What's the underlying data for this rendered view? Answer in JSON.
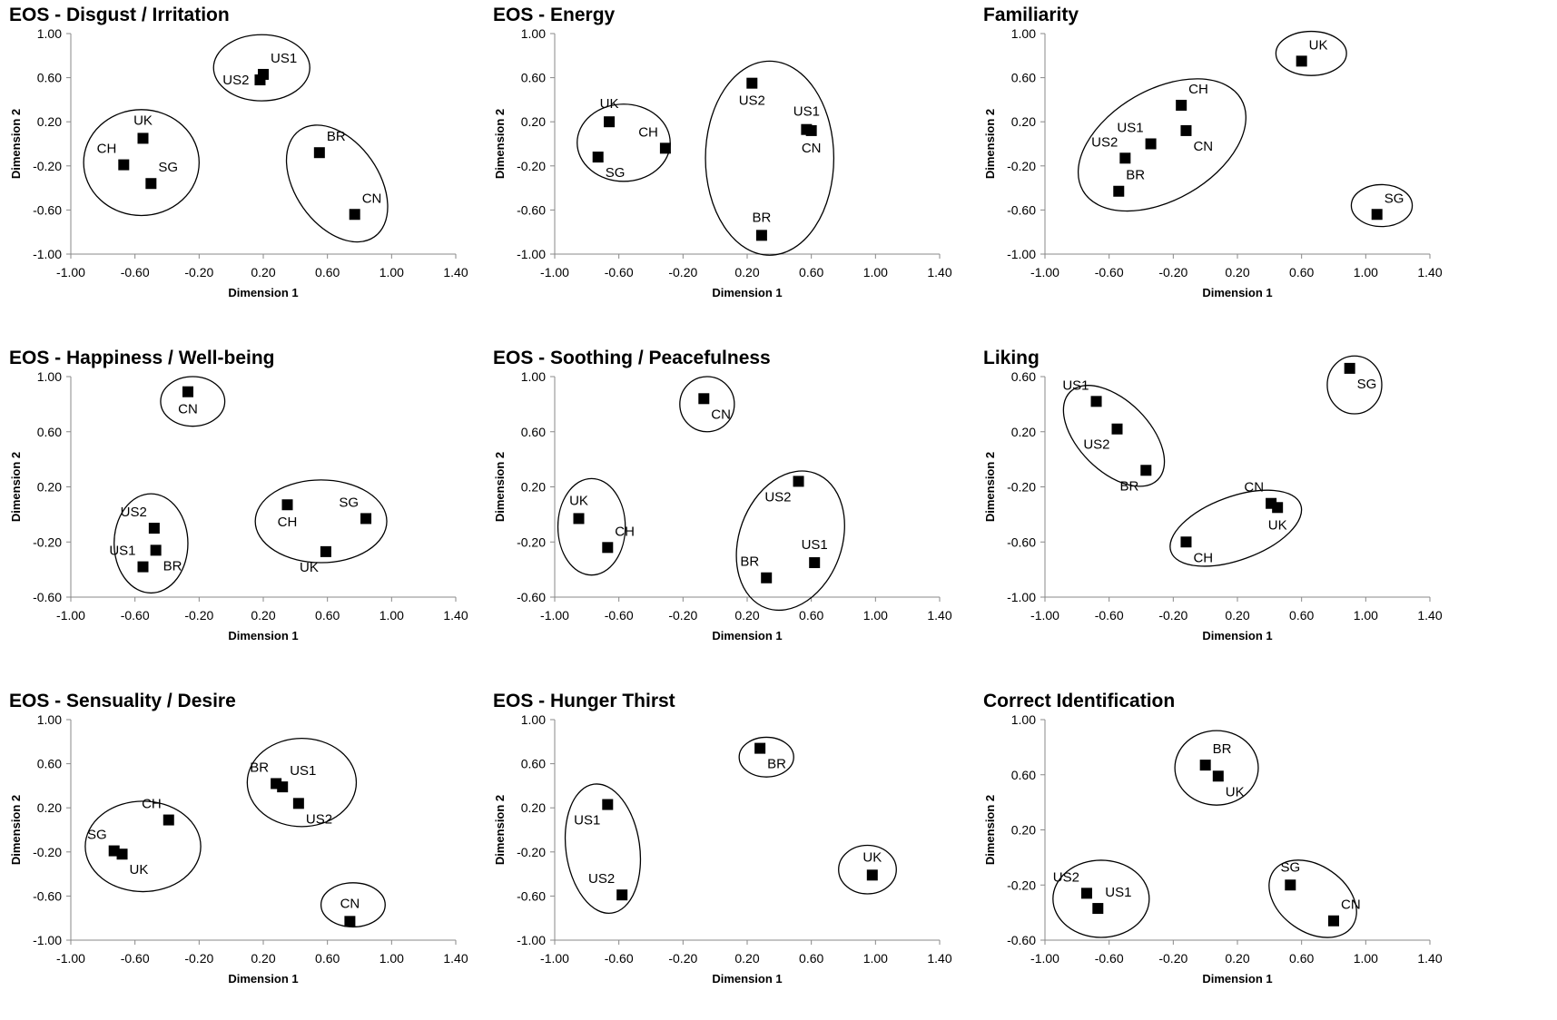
{
  "chart_data": [
    {
      "type": "scatter",
      "title": "EOS - Disgust / Irritation",
      "xlabel": "Dimension 1",
      "ylabel": "Dimension 2",
      "xlim": [
        -1.0,
        1.4
      ],
      "ylim": [
        -1.0,
        1.0
      ],
      "xticks": [
        "-1.00",
        "-0.60",
        "-0.20",
        "0.20",
        "0.60",
        "1.00",
        "1.40"
      ],
      "yticks": [
        "1.00",
        "0.60",
        "0.20",
        "-0.20",
        "-0.60",
        "-1.00"
      ],
      "points": [
        {
          "label": "US1",
          "x": 0.2,
          "y": 0.63,
          "lpos": "ne"
        },
        {
          "label": "US2",
          "x": 0.18,
          "y": 0.58,
          "lpos": "w"
        },
        {
          "label": "UK",
          "x": -0.55,
          "y": 0.05,
          "lpos": "n"
        },
        {
          "label": "CH",
          "x": -0.67,
          "y": -0.19,
          "lpos": "nw"
        },
        {
          "label": "SG",
          "x": -0.5,
          "y": -0.36,
          "lpos": "ne"
        },
        {
          "label": "BR",
          "x": 0.55,
          "y": -0.08,
          "lpos": "ne"
        },
        {
          "label": "CN",
          "x": 0.77,
          "y": -0.64,
          "lpos": "ne"
        }
      ],
      "clusters": [
        {
          "cx": 0.19,
          "cy": 0.69,
          "rx": 0.3,
          "ry": 0.3,
          "rot": 0
        },
        {
          "cx": -0.56,
          "cy": -0.17,
          "rx": 0.36,
          "ry": 0.48,
          "rot": 0
        },
        {
          "cx": 0.66,
          "cy": -0.36,
          "rx": 0.26,
          "ry": 0.59,
          "rot": -35
        }
      ]
    },
    {
      "type": "scatter",
      "title": "EOS - Energy",
      "xlabel": "Dimension 1",
      "ylabel": "Dimension 2",
      "xlim": [
        -1.0,
        1.4
      ],
      "ylim": [
        -1.0,
        1.0
      ],
      "xticks": [
        "-1.00",
        "-0.60",
        "-0.20",
        "0.20",
        "0.60",
        "1.00",
        "1.40"
      ],
      "yticks": [
        "1.00",
        "0.60",
        "0.20",
        "-0.20",
        "-0.60",
        "-1.00"
      ],
      "points": [
        {
          "label": "UK",
          "x": -0.66,
          "y": 0.2,
          "lpos": "n"
        },
        {
          "label": "CH",
          "x": -0.31,
          "y": -0.04,
          "lpos": "nw"
        },
        {
          "label": "SG",
          "x": -0.73,
          "y": -0.12,
          "lpos": "se"
        },
        {
          "label": "US2",
          "x": 0.23,
          "y": 0.55,
          "lpos": "s"
        },
        {
          "label": "US1",
          "x": 0.57,
          "y": 0.13,
          "lpos": "n"
        },
        {
          "label": "CN",
          "x": 0.6,
          "y": 0.12,
          "lpos": "s"
        },
        {
          "label": "BR",
          "x": 0.29,
          "y": -0.83,
          "lpos": "n"
        }
      ],
      "clusters": [
        {
          "cx": -0.57,
          "cy": 0.01,
          "rx": 0.29,
          "ry": 0.35,
          "rot": 0
        },
        {
          "cx": 0.34,
          "cy": -0.13,
          "rx": 0.4,
          "ry": 0.88,
          "rot": 0
        }
      ]
    },
    {
      "type": "scatter",
      "title": "Familiarity",
      "xlabel": "Dimension 1",
      "ylabel": "Dimension 2",
      "xlim": [
        -1.0,
        1.4
      ],
      "ylim": [
        -1.0,
        1.0
      ],
      "xticks": [
        "-1.00",
        "-0.60",
        "-0.20",
        "0.20",
        "0.60",
        "1.00",
        "1.40"
      ],
      "yticks": [
        "1.00",
        "0.60",
        "0.20",
        "-0.20",
        "-0.60",
        "-1.00"
      ],
      "points": [
        {
          "label": "UK",
          "x": 0.6,
          "y": 0.75,
          "lpos": "ne"
        },
        {
          "label": "CH",
          "x": -0.15,
          "y": 0.35,
          "lpos": "ne"
        },
        {
          "label": "US1",
          "x": -0.34,
          "y": 0.0,
          "lpos": "nw"
        },
        {
          "label": "CN",
          "x": -0.12,
          "y": 0.12,
          "lpos": "se"
        },
        {
          "label": "US2",
          "x": -0.5,
          "y": -0.13,
          "lpos": "nw"
        },
        {
          "label": "BR",
          "x": -0.54,
          "y": -0.43,
          "lpos": "ne"
        },
        {
          "label": "SG",
          "x": 1.07,
          "y": -0.64,
          "lpos": "ne"
        }
      ],
      "clusters": [
        {
          "cx": 0.66,
          "cy": 0.82,
          "rx": 0.22,
          "ry": 0.2,
          "rot": 0
        },
        {
          "cx": -0.27,
          "cy": -0.01,
          "rx": 0.57,
          "ry": 0.5,
          "rot": -30
        },
        {
          "cx": 1.1,
          "cy": -0.56,
          "rx": 0.19,
          "ry": 0.19,
          "rot": 0
        }
      ]
    },
    {
      "type": "scatter",
      "title": "EOS - Happiness / Well-being",
      "xlabel": "Dimension 1",
      "ylabel": "Dimension 2",
      "xlim": [
        -1.0,
        1.4
      ],
      "ylim": [
        -0.6,
        1.0
      ],
      "xticks": [
        "-1.00",
        "-0.60",
        "-0.20",
        "0.20",
        "0.60",
        "1.00",
        "1.40"
      ],
      "yticks": [
        "1.00",
        "0.60",
        "0.20",
        "-0.20",
        "-0.60"
      ],
      "points": [
        {
          "label": "CN",
          "x": -0.27,
          "y": 0.89,
          "lpos": "s"
        },
        {
          "label": "US2",
          "x": -0.48,
          "y": -0.1,
          "lpos": "nw"
        },
        {
          "label": "US1",
          "x": -0.55,
          "y": -0.38,
          "lpos": "nw"
        },
        {
          "label": "BR",
          "x": -0.47,
          "y": -0.26,
          "lpos": "se"
        },
        {
          "label": "CH",
          "x": 0.35,
          "y": 0.07,
          "lpos": "s"
        },
        {
          "label": "SG",
          "x": 0.84,
          "y": -0.03,
          "lpos": "nw"
        },
        {
          "label": "UK",
          "x": 0.59,
          "y": -0.27,
          "lpos": "sw"
        }
      ],
      "clusters": [
        {
          "cx": -0.24,
          "cy": 0.82,
          "rx": 0.2,
          "ry": 0.18,
          "rot": 0
        },
        {
          "cx": -0.5,
          "cy": -0.21,
          "rx": 0.23,
          "ry": 0.36,
          "rot": 0
        },
        {
          "cx": 0.56,
          "cy": -0.05,
          "rx": 0.41,
          "ry": 0.3,
          "rot": 0
        }
      ]
    },
    {
      "type": "scatter",
      "title": "EOS - Soothing / Peacefulness",
      "xlabel": "Dimension 1",
      "ylabel": "Dimension 2",
      "xlim": [
        -1.0,
        1.4
      ],
      "ylim": [
        -0.6,
        1.0
      ],
      "xticks": [
        "-1.00",
        "-0.60",
        "-0.20",
        "0.20",
        "0.60",
        "1.00",
        "1.40"
      ],
      "yticks": [
        "1.00",
        "0.60",
        "0.20",
        "-0.20",
        "-0.60"
      ],
      "points": [
        {
          "label": "CN",
          "x": -0.07,
          "y": 0.84,
          "lpos": "se"
        },
        {
          "label": "UK",
          "x": -0.85,
          "y": -0.03,
          "lpos": "n"
        },
        {
          "label": "CH",
          "x": -0.67,
          "y": -0.24,
          "lpos": "ne"
        },
        {
          "label": "US2",
          "x": 0.52,
          "y": 0.24,
          "lpos": "sw"
        },
        {
          "label": "US1",
          "x": 0.62,
          "y": -0.35,
          "lpos": "n"
        },
        {
          "label": "BR",
          "x": 0.32,
          "y": -0.46,
          "lpos": "nw"
        }
      ],
      "clusters": [
        {
          "cx": -0.05,
          "cy": 0.8,
          "rx": 0.17,
          "ry": 0.2,
          "rot": 0
        },
        {
          "cx": -0.77,
          "cy": -0.09,
          "rx": 0.21,
          "ry": 0.35,
          "rot": 0
        },
        {
          "cx": 0.47,
          "cy": -0.19,
          "rx": 0.32,
          "ry": 0.52,
          "rot": 20
        }
      ]
    },
    {
      "type": "scatter",
      "title": "Liking",
      "xlabel": "Dimension 1",
      "ylabel": "Dimension 2",
      "xlim": [
        -1.0,
        1.4
      ],
      "ylim": [
        -1.0,
        0.6
      ],
      "xticks": [
        "-1.00",
        "-0.60",
        "-0.20",
        "0.20",
        "0.60",
        "1.00",
        "1.40"
      ],
      "yticks": [
        "0.60",
        "0.20",
        "-0.20",
        "-0.60",
        "-1.00"
      ],
      "points": [
        {
          "label": "US1",
          "x": -0.68,
          "y": 0.42,
          "lpos": "nw"
        },
        {
          "label": "US2",
          "x": -0.55,
          "y": 0.22,
          "lpos": "sw"
        },
        {
          "label": "BR",
          "x": -0.37,
          "y": -0.08,
          "lpos": "sw"
        },
        {
          "label": "CN",
          "x": 0.41,
          "y": -0.32,
          "lpos": "nw"
        },
        {
          "label": "UK",
          "x": 0.45,
          "y": -0.35,
          "lpos": "s"
        },
        {
          "label": "CH",
          "x": -0.12,
          "y": -0.6,
          "lpos": "se"
        },
        {
          "label": "SG",
          "x": 0.9,
          "y": 0.66,
          "lpos": "se"
        }
      ],
      "clusters": [
        {
          "cx": -0.57,
          "cy": 0.17,
          "rx": 0.22,
          "ry": 0.45,
          "rot": -45
        },
        {
          "cx": 0.19,
          "cy": -0.5,
          "rx": 0.43,
          "ry": 0.23,
          "rot": -20
        },
        {
          "cx": 0.93,
          "cy": 0.54,
          "rx": 0.17,
          "ry": 0.21,
          "rot": 0
        }
      ]
    },
    {
      "type": "scatter",
      "title": "EOS - Sensuality / Desire",
      "xlabel": "Dimension 1",
      "ylabel": "Dimension 2",
      "xlim": [
        -1.0,
        1.4
      ],
      "ylim": [
        -1.0,
        1.0
      ],
      "xticks": [
        "-1.00",
        "-0.60",
        "-0.20",
        "0.20",
        "0.60",
        "1.00",
        "1.40"
      ],
      "yticks": [
        "1.00",
        "0.60",
        "0.20",
        "-0.20",
        "-0.60",
        "-1.00"
      ],
      "points": [
        {
          "label": "BR",
          "x": 0.28,
          "y": 0.42,
          "lpos": "nw"
        },
        {
          "label": "US1",
          "x": 0.32,
          "y": 0.39,
          "lpos": "ne"
        },
        {
          "label": "US2",
          "x": 0.42,
          "y": 0.24,
          "lpos": "se"
        },
        {
          "label": "CH",
          "x": -0.39,
          "y": 0.09,
          "lpos": "nw"
        },
        {
          "label": "SG",
          "x": -0.73,
          "y": -0.19,
          "lpos": "nw"
        },
        {
          "label": "UK",
          "x": -0.68,
          "y": -0.22,
          "lpos": "se"
        },
        {
          "label": "CN",
          "x": 0.74,
          "y": -0.83,
          "lpos": "n"
        }
      ],
      "clusters": [
        {
          "cx": 0.44,
          "cy": 0.43,
          "rx": 0.34,
          "ry": 0.4,
          "rot": 0
        },
        {
          "cx": -0.55,
          "cy": -0.15,
          "rx": 0.36,
          "ry": 0.41,
          "rot": 0
        },
        {
          "cx": 0.76,
          "cy": -0.68,
          "rx": 0.2,
          "ry": 0.2,
          "rot": 0
        }
      ]
    },
    {
      "type": "scatter",
      "title": "EOS - Hunger Thirst",
      "xlabel": "Dimension 1",
      "ylabel": "Dimension 2",
      "xlim": [
        -1.0,
        1.4
      ],
      "ylim": [
        -1.0,
        1.0
      ],
      "xticks": [
        "-1.00",
        "-0.60",
        "-0.20",
        "0.20",
        "0.60",
        "1.00",
        "1.40"
      ],
      "yticks": [
        "1.00",
        "0.60",
        "0.20",
        "-0.20",
        "-0.60",
        "-1.00"
      ],
      "points": [
        {
          "label": "BR",
          "x": 0.28,
          "y": 0.74,
          "lpos": "se"
        },
        {
          "label": "US1",
          "x": -0.67,
          "y": 0.23,
          "lpos": "sw"
        },
        {
          "label": "US2",
          "x": -0.58,
          "y": -0.59,
          "lpos": "nw"
        },
        {
          "label": "UK",
          "x": 0.98,
          "y": -0.41,
          "lpos": "n"
        }
      ],
      "clusters": [
        {
          "cx": 0.32,
          "cy": 0.66,
          "rx": 0.17,
          "ry": 0.18,
          "rot": 0
        },
        {
          "cx": -0.7,
          "cy": -0.17,
          "rx": 0.23,
          "ry": 0.59,
          "rot": -8
        },
        {
          "cx": 0.95,
          "cy": -0.36,
          "rx": 0.18,
          "ry": 0.22,
          "rot": 0
        }
      ]
    },
    {
      "type": "scatter",
      "title": "Correct Identification",
      "xlabel": "Dimension 1",
      "ylabel": "Dimension 2",
      "xlim": [
        -1.0,
        1.4
      ],
      "ylim": [
        -0.6,
        1.0
      ],
      "xticks": [
        "-1.00",
        "-0.60",
        "-0.20",
        "0.20",
        "0.60",
        "1.00",
        "1.40"
      ],
      "yticks": [
        "1.00",
        "0.60",
        "0.20",
        "-0.20",
        "-0.60"
      ],
      "points": [
        {
          "label": "BR",
          "x": 0.0,
          "y": 0.67,
          "lpos": "ne"
        },
        {
          "label": "UK",
          "x": 0.08,
          "y": 0.59,
          "lpos": "se"
        },
        {
          "label": "US2",
          "x": -0.74,
          "y": -0.26,
          "lpos": "nw"
        },
        {
          "label": "US1",
          "x": -0.67,
          "y": -0.37,
          "lpos": "ne"
        },
        {
          "label": "SG",
          "x": 0.53,
          "y": -0.2,
          "lpos": "n"
        },
        {
          "label": "CN",
          "x": 0.8,
          "y": -0.46,
          "lpos": "ne"
        }
      ],
      "clusters": [
        {
          "cx": 0.07,
          "cy": 0.65,
          "rx": 0.26,
          "ry": 0.27,
          "rot": 0
        },
        {
          "cx": -0.65,
          "cy": -0.3,
          "rx": 0.3,
          "ry": 0.28,
          "rot": 0
        },
        {
          "cx": 0.67,
          "cy": -0.3,
          "rx": 0.3,
          "ry": 0.24,
          "rot": 35
        }
      ]
    }
  ]
}
